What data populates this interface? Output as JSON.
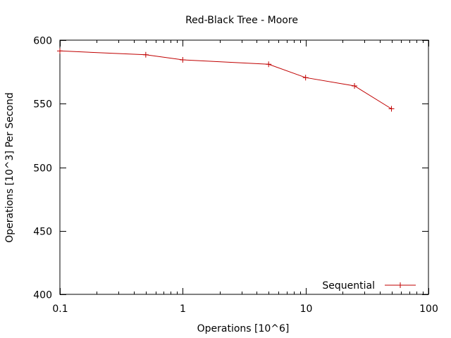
{
  "chart_data": {
    "type": "line",
    "title": "Red-Black Tree - Moore",
    "xlabel": "Operations [10^6]",
    "ylabel": "Operations [10^3] Per Second",
    "x_scale": "log",
    "xlim": [
      0.1,
      100
    ],
    "ylim": [
      400,
      600
    ],
    "x_ticks": [
      0.1,
      1,
      10,
      100
    ],
    "x_tick_labels": [
      "0.1",
      "1",
      "10",
      "100"
    ],
    "y_ticks": [
      400,
      450,
      500,
      550,
      600
    ],
    "y_tick_labels": [
      "400",
      "450",
      "500",
      "550",
      "600"
    ],
    "grid": false,
    "legend_position": "bottom-right",
    "series": [
      {
        "name": "Sequential",
        "color": "#c00000",
        "marker": "plus",
        "x": [
          0.1,
          0.5,
          1,
          5,
          10,
          25,
          50
        ],
        "y": [
          591.5,
          588.5,
          584.5,
          581,
          570.5,
          564,
          546
        ]
      }
    ]
  }
}
